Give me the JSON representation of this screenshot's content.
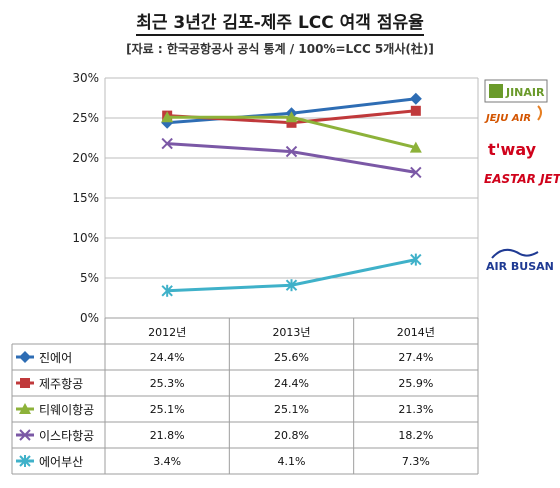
{
  "title": "최근 3년간 김포-제주 LCC 여객 점유율",
  "subtitle": "[자료 : 한국공항공사 공식 통계 / 100%=LCC 5개사(社)]",
  "logos": {
    "jinair": "JINAIR",
    "jejuair": "JEJU AIR",
    "tway": "t'way",
    "eastarjet": "EASTAR JET",
    "airbusan": "AIR BUSAN"
  },
  "chart_data": {
    "type": "line",
    "categories": [
      "2012년",
      "2013년",
      "2014년"
    ],
    "ylim": [
      0,
      30
    ],
    "yticks": [
      "0%",
      "5%",
      "10%",
      "15%",
      "20%",
      "25%",
      "30%"
    ],
    "grid": true,
    "series": [
      {
        "name": "진에어",
        "values": [
          24.4,
          25.6,
          27.4
        ],
        "labels": [
          "24.4%",
          "25.6%",
          "27.4%"
        ],
        "color": "#2e6db4",
        "marker": "diamond"
      },
      {
        "name": "제주항공",
        "values": [
          25.3,
          24.4,
          25.9
        ],
        "labels": [
          "25.3%",
          "24.4%",
          "25.9%"
        ],
        "color": "#c0393b",
        "marker": "square"
      },
      {
        "name": "티웨이항공",
        "values": [
          25.1,
          25.1,
          21.3
        ],
        "labels": [
          "25.1%",
          "25.1%",
          "21.3%"
        ],
        "color": "#8db23a",
        "marker": "triangle"
      },
      {
        "name": "이스타항공",
        "values": [
          21.8,
          20.8,
          18.2
        ],
        "labels": [
          "21.8%",
          "20.8%",
          "18.2%"
        ],
        "color": "#7b58a6",
        "marker": "x"
      },
      {
        "name": "에어부산",
        "values": [
          3.4,
          4.1,
          7.3
        ],
        "labels": [
          "3.4%",
          "4.1%",
          "7.3%"
        ],
        "color": "#3fb1c9",
        "marker": "star"
      }
    ]
  }
}
